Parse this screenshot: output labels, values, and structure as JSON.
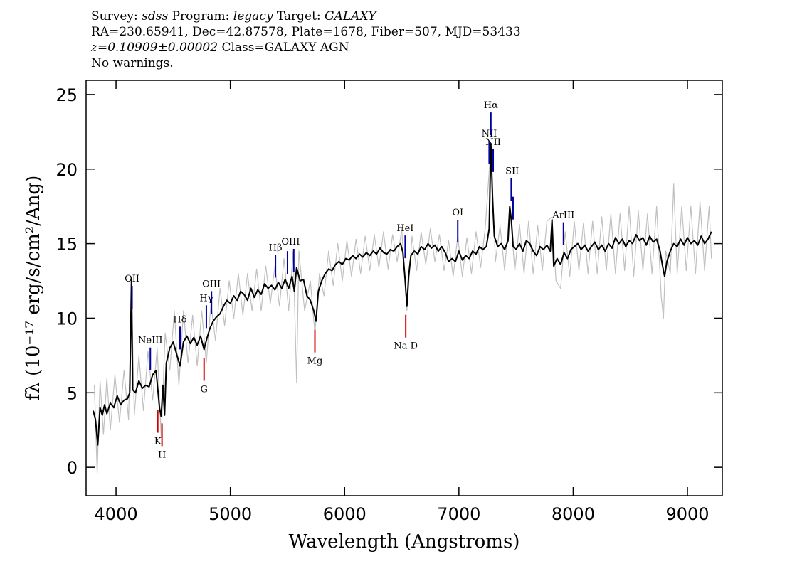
{
  "chart_data": {
    "type": "line",
    "header": [
      [
        {
          "text": "Survey: ",
          "italic": false
        },
        {
          "text": "sdss",
          "italic": true
        },
        {
          "text": " Program: ",
          "italic": false
        },
        {
          "text": "legacy",
          "italic": true
        },
        {
          "text": " Target: ",
          "italic": false
        },
        {
          "text": "GALAXY",
          "italic": true
        }
      ],
      [
        {
          "text": "RA=230.65941, Dec=42.87578, Plate=1678, Fiber=507, MJD=53433",
          "italic": false
        }
      ],
      [
        {
          "text": "z=0.10909±0.00002",
          "italic": true
        },
        {
          "text": " Class=GALAXY AGN",
          "italic": false
        }
      ],
      [
        {
          "text": "No warnings.",
          "italic": false
        }
      ]
    ],
    "xlabel": "Wavelength (Angstroms)",
    "ylabel": "fλ (10⁻¹⁷ erg/s/cm²/Ang)",
    "xlim": [
      3738,
      9305
    ],
    "ylim": [
      -1.9,
      25.95
    ],
    "xticks": [
      4000,
      5000,
      6000,
      7000,
      8000,
      9000
    ],
    "yticks": [
      0,
      5,
      10,
      15,
      20,
      25
    ],
    "series": [
      {
        "color": "#c0c0c0",
        "x": [
          3810,
          3835,
          3860,
          3890,
          3920,
          3950,
          3990,
          4030,
          4070,
          4110,
          4135,
          4160,
          4200,
          4240,
          4280,
          4320,
          4360,
          4395,
          4430,
          4470,
          4510,
          4550,
          4590,
          4630,
          4670,
          4710,
          4750,
          4790,
          4830,
          4870,
          4910,
          4950,
          4990,
          5030,
          5070,
          5110,
          5150,
          5190,
          5230,
          5270,
          5310,
          5350,
          5390,
          5430,
          5470,
          5510,
          5550,
          5580,
          5600,
          5650,
          5700,
          5740,
          5780,
          5820,
          5860,
          5900,
          5940,
          5980,
          6020,
          6060,
          6100,
          6140,
          6180,
          6220,
          6260,
          6300,
          6340,
          6380,
          6420,
          6460,
          6500,
          6545,
          6590,
          6630,
          6670,
          6710,
          6750,
          6790,
          6830,
          6870,
          6910,
          6950,
          6990,
          7030,
          7070,
          7110,
          7150,
          7190,
          7230,
          7280,
          7320,
          7360,
          7400,
          7445,
          7490,
          7530,
          7570,
          7610,
          7650,
          7690,
          7730,
          7770,
          7815,
          7850,
          7890,
          7930,
          7970,
          8010,
          8050,
          8090,
          8130,
          8170,
          8210,
          8250,
          8290,
          8330,
          8370,
          8410,
          8450,
          8490,
          8530,
          8570,
          8610,
          8650,
          8690,
          8730,
          8770,
          8790,
          8810,
          8850,
          8880,
          8910,
          8950,
          8990,
          9030,
          9070,
          9110,
          9150,
          9190,
          9210
        ],
        "values": [
          5.5,
          -0.4,
          5.8,
          2.2,
          6.0,
          2.5,
          6.2,
          3.0,
          6.5,
          3.2,
          12.0,
          3.5,
          7.5,
          3.8,
          7.8,
          4.5,
          8.0,
          2.0,
          9.0,
          6.5,
          10.5,
          5.5,
          10.5,
          7.0,
          10.2,
          6.8,
          10.5,
          7.0,
          11.0,
          8.5,
          12.0,
          9.5,
          12.5,
          10.0,
          13.0,
          10.2,
          13.0,
          10.5,
          13.3,
          10.5,
          13.5,
          11.0,
          13.5,
          10.8,
          14.0,
          10.5,
          14.5,
          5.7,
          14.5,
          10.5,
          12.5,
          9.0,
          13.0,
          11.5,
          14.5,
          12.2,
          15.0,
          12.5,
          15.2,
          12.8,
          15.3,
          13.0,
          15.5,
          13.2,
          15.6,
          13.4,
          15.8,
          13.3,
          15.6,
          13.8,
          16.0,
          10.5,
          15.5,
          13.2,
          15.8,
          13.6,
          16.0,
          13.8,
          15.6,
          13.2,
          15.2,
          12.8,
          15.5,
          12.8,
          15.4,
          13.0,
          15.8,
          13.4,
          16.0,
          21.5,
          13.8,
          16.2,
          13.2,
          17.5,
          13.2,
          16.3,
          13.0,
          16.5,
          13.0,
          16.2,
          13.2,
          16.5,
          16.8,
          12.5,
          12.0,
          15.8,
          12.8,
          16.5,
          13.2,
          16.4,
          13.0,
          16.5,
          13.0,
          16.8,
          13.2,
          17.0,
          13.0,
          17.0,
          13.2,
          17.5,
          12.8,
          17.2,
          13.2,
          17.0,
          13.0,
          17.5,
          11.5,
          10.0,
          14.5,
          13.0,
          19.0,
          13.0,
          17.5,
          13.2,
          17.5,
          13.0,
          17.8,
          13.2,
          17.5,
          14.0
        ]
      },
      {
        "color": "#000000",
        "x": [
          3800,
          3820,
          3840,
          3860,
          3880,
          3900,
          3920,
          3950,
          3980,
          4010,
          4040,
          4070,
          4100,
          4120,
          4135,
          4145,
          4170,
          4200,
          4230,
          4260,
          4290,
          4320,
          4350,
          4380,
          4395,
          4410,
          4425,
          4440,
          4470,
          4500,
          4530,
          4560,
          4590,
          4620,
          4650,
          4680,
          4710,
          4740,
          4770,
          4790,
          4820,
          4850,
          4880,
          4910,
          4940,
          4970,
          5000,
          5030,
          5060,
          5090,
          5120,
          5150,
          5180,
          5210,
          5240,
          5270,
          5300,
          5330,
          5360,
          5390,
          5420,
          5450,
          5480,
          5510,
          5540,
          5560,
          5580,
          5610,
          5640,
          5670,
          5700,
          5730,
          5750,
          5770,
          5800,
          5830,
          5860,
          5890,
          5920,
          5950,
          5980,
          6010,
          6040,
          6070,
          6100,
          6130,
          6160,
          6190,
          6220,
          6250,
          6280,
          6310,
          6340,
          6370,
          6400,
          6430,
          6460,
          6490,
          6510,
          6530,
          6545,
          6560,
          6580,
          6610,
          6640,
          6670,
          6700,
          6730,
          6760,
          6790,
          6820,
          6850,
          6880,
          6910,
          6940,
          6970,
          7000,
          7030,
          7060,
          7090,
          7120,
          7150,
          7180,
          7210,
          7240,
          7265,
          7280,
          7295,
          7310,
          7340,
          7370,
          7400,
          7430,
          7445,
          7460,
          7475,
          7500,
          7530,
          7560,
          7590,
          7620,
          7650,
          7680,
          7710,
          7740,
          7770,
          7800,
          7815,
          7830,
          7860,
          7890,
          7920,
          7950,
          7980,
          8010,
          8040,
          8070,
          8100,
          8130,
          8160,
          8190,
          8220,
          8250,
          8280,
          8310,
          8340,
          8370,
          8400,
          8430,
          8460,
          8490,
          8520,
          8550,
          8580,
          8610,
          8640,
          8670,
          8700,
          8730,
          8760,
          8780,
          8800,
          8820,
          8850,
          8880,
          8910,
          8940,
          8970,
          9000,
          9030,
          9060,
          9090,
          9120,
          9150,
          9180,
          9210
        ],
        "values": [
          3.8,
          3.2,
          1.5,
          4.0,
          3.5,
          4.2,
          3.6,
          4.3,
          4.0,
          4.8,
          4.2,
          4.5,
          4.6,
          5.0,
          12.6,
          5.2,
          5.0,
          5.8,
          5.3,
          5.5,
          5.4,
          6.2,
          6.5,
          4.0,
          3.4,
          5.5,
          3.5,
          7.0,
          8.0,
          8.4,
          7.6,
          6.8,
          8.4,
          8.8,
          8.3,
          8.7,
          8.2,
          8.8,
          7.9,
          8.5,
          9.3,
          9.8,
          10.1,
          10.3,
          10.8,
          11.2,
          11.0,
          11.5,
          11.2,
          11.8,
          11.6,
          11.2,
          12.0,
          11.4,
          11.9,
          11.6,
          12.3,
          12.0,
          12.2,
          11.9,
          12.4,
          12.0,
          12.6,
          12.0,
          12.8,
          11.8,
          13.4,
          12.5,
          12.6,
          11.5,
          11.2,
          10.5,
          9.8,
          11.8,
          12.5,
          13.0,
          13.3,
          13.2,
          13.6,
          13.8,
          13.6,
          14.0,
          13.9,
          14.2,
          14.0,
          14.3,
          14.1,
          14.4,
          14.2,
          14.5,
          14.3,
          14.7,
          14.4,
          14.3,
          14.6,
          14.5,
          14.8,
          15.0,
          14.4,
          12.5,
          10.8,
          12.8,
          14.2,
          14.5,
          14.3,
          14.8,
          14.6,
          15.0,
          14.7,
          14.9,
          14.5,
          14.8,
          14.4,
          13.8,
          14.0,
          13.8,
          14.5,
          13.9,
          14.2,
          14.0,
          14.5,
          14.3,
          14.8,
          14.6,
          14.8,
          16.0,
          21.7,
          18.0,
          15.5,
          14.8,
          15.0,
          14.6,
          15.2,
          17.5,
          16.5,
          14.8,
          14.6,
          15.0,
          14.5,
          15.2,
          15.0,
          14.5,
          14.2,
          14.8,
          14.6,
          14.9,
          14.5,
          16.6,
          13.5,
          14.0,
          13.6,
          14.4,
          14.0,
          14.6,
          14.8,
          15.0,
          14.6,
          14.9,
          14.5,
          14.8,
          15.1,
          14.6,
          14.9,
          14.5,
          15.0,
          14.7,
          15.4,
          15.0,
          15.3,
          14.8,
          15.2,
          15.0,
          15.6,
          15.2,
          15.4,
          14.9,
          15.5,
          15.1,
          15.3,
          14.5,
          13.6,
          12.8,
          13.8,
          14.5,
          15.0,
          14.8,
          15.3,
          14.9,
          15.4,
          15.0,
          15.2,
          14.9,
          15.5,
          15.0,
          15.3,
          15.8
        ]
      }
    ],
    "emission_lines": {
      "color": "#0000a0",
      "lines": [
        {
          "label": "OII",
          "x": [
            4140
          ]
        },
        {
          "label": "NeIII",
          "x": [
            4300
          ]
        },
        {
          "label": "Hδ",
          "x": [
            4560
          ]
        },
        {
          "label": "Hγ",
          "x": [
            4790
          ]
        },
        {
          "label": "OIII",
          "x": [
            4835
          ]
        },
        {
          "label": "Hβ",
          "x": [
            5395
          ]
        },
        {
          "label": "OIII",
          "x": [
            5500,
            5555
          ]
        },
        {
          "label": "HeI",
          "x": [
            6530
          ]
        },
        {
          "label": "OI",
          "x": [
            6990
          ]
        },
        {
          "label": "NII",
          "x": [
            7265
          ]
        },
        {
          "label": "Hα",
          "x": [
            7280
          ]
        },
        {
          "label": "NII",
          "x": [
            7300
          ]
        },
        {
          "label": "SII",
          "x": [
            7458,
            7474
          ]
        },
        {
          "label": "ArIII",
          "x": [
            7915
          ]
        }
      ]
    },
    "absorption_lines": {
      "color": "#d00000",
      "lines": [
        {
          "label": "K",
          "x": [
            4365
          ]
        },
        {
          "label": "H",
          "x": [
            4402
          ]
        },
        {
          "label": "G",
          "x": [
            4770
          ]
        },
        {
          "label": "Mg",
          "x": [
            5740
          ]
        },
        {
          "label": "Na D",
          "x": [
            6535
          ]
        }
      ]
    }
  }
}
